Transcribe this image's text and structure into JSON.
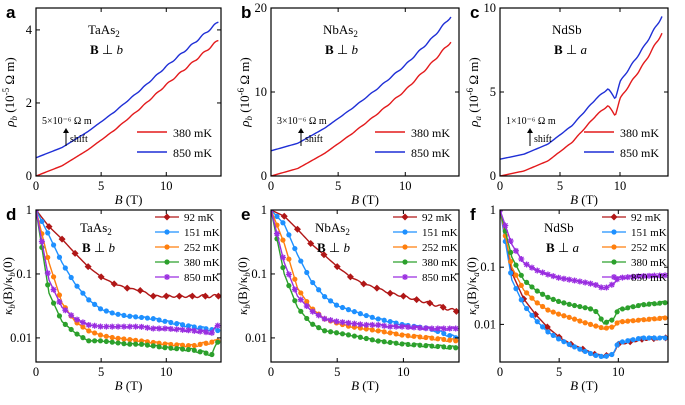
{
  "colors": {
    "red": "#e31a1c",
    "blue": "#1f2fd6",
    "k92": "#b01717",
    "k151": "#1e90ff",
    "k252": "#ff7f0e",
    "k380": "#2ca02c",
    "k850": "#9a2ee0"
  },
  "chart_data": [
    {
      "panel": "a",
      "type": "line",
      "material": "TaAs",
      "material_sub": "2",
      "field_dir": "B ⊥ b",
      "xlabel": "B (T)",
      "ylabel_sym": "ρ",
      "ylabel_sub": "b",
      "ylabel_unit": " (10",
      "ylabel_exp": "-5",
      "ylabel_unit2": " Ω m)",
      "xlim": [
        0,
        14.2
      ],
      "ylim": [
        0,
        4.6
      ],
      "xticks": [
        0,
        5,
        10
      ],
      "xtick_labels": [
        "0",
        "5",
        "10"
      ],
      "yticks": [
        0,
        2,
        4
      ],
      "ytick_labels": [
        "0",
        "2",
        "4"
      ],
      "shift_label": "5×10⁻⁶ Ω m",
      "shift_word": "shift",
      "shift_value": 0.5,
      "series": [
        {
          "name": "380 mK",
          "color": "red",
          "x": [
            0,
            2,
            4,
            6,
            8,
            10,
            12,
            14
          ],
          "y": [
            0,
            0.28,
            0.72,
            1.25,
            1.85,
            2.5,
            3.1,
            3.72
          ]
        },
        {
          "name": "850 mK",
          "color": "blue",
          "x": [
            0,
            2,
            4,
            6,
            8,
            10,
            12,
            14
          ],
          "y": [
            0.5,
            0.78,
            1.22,
            1.75,
            2.35,
            3.0,
            3.6,
            4.22
          ]
        }
      ]
    },
    {
      "panel": "b",
      "type": "line",
      "material": "NbAs",
      "material_sub": "2",
      "field_dir": "B ⊥ b",
      "xlabel": "B (T)",
      "ylabel_sym": "ρ",
      "ylabel_sub": "b",
      "ylabel_unit": " (10",
      "ylabel_exp": "-6",
      "ylabel_unit2": " Ω m)",
      "xlim": [
        0,
        14
      ],
      "ylim": [
        0,
        20
      ],
      "xticks": [
        0,
        5,
        10
      ],
      "xtick_labels": [
        "0",
        "5",
        "10"
      ],
      "yticks": [
        0,
        10,
        20
      ],
      "ytick_labels": [
        "0",
        "10",
        "20"
      ],
      "shift_label": "3×10⁻⁶ Ω m",
      "shift_word": "shift",
      "shift_value": 3,
      "series": [
        {
          "name": "380 mK",
          "color": "red",
          "x": [
            0,
            2,
            4,
            6,
            8,
            10,
            12,
            13.4
          ],
          "y": [
            0,
            0.9,
            2.7,
            5.0,
            7.5,
            10.2,
            13.5,
            16.0
          ]
        },
        {
          "name": "850 mK",
          "color": "blue",
          "x": [
            0,
            2,
            4,
            6,
            8,
            10,
            12,
            13.4
          ],
          "y": [
            3.0,
            3.9,
            5.7,
            8.0,
            10.5,
            13.2,
            16.4,
            19.0
          ]
        }
      ]
    },
    {
      "panel": "c",
      "type": "line",
      "material": "NdSb",
      "material_sub": "",
      "field_dir": "B ⊥ a",
      "xlabel": "B (T)",
      "ylabel_sym": "ρ",
      "ylabel_sub": "a",
      "ylabel_unit": " (10",
      "ylabel_exp": "-6",
      "ylabel_unit2": " Ω m)",
      "xlim": [
        0,
        14
      ],
      "ylim": [
        0,
        10
      ],
      "xticks": [
        0,
        5,
        10
      ],
      "xtick_labels": [
        "0",
        "5",
        "10"
      ],
      "yticks": [
        0,
        5,
        10
      ],
      "ytick_labels": [
        "0",
        "5",
        "10"
      ],
      "shift_label": "1×10⁻⁶ Ω m",
      "shift_word": "shift",
      "shift_value": 1,
      "series": [
        {
          "name": "380 mK",
          "color": "red",
          "x": [
            0,
            2,
            4,
            6,
            8,
            9,
            9.6,
            10,
            12,
            13.5
          ],
          "y": [
            0,
            0.3,
            0.9,
            2.0,
            3.6,
            4.2,
            3.6,
            4.6,
            6.7,
            8.5
          ]
        },
        {
          "name": "850 mK",
          "color": "blue",
          "x": [
            0,
            2,
            4,
            6,
            8,
            9,
            9.6,
            10,
            12,
            13.5
          ],
          "y": [
            1.0,
            1.3,
            1.9,
            3.0,
            4.6,
            5.2,
            4.6,
            5.6,
            7.7,
            9.5
          ]
        }
      ]
    },
    {
      "panel": "d",
      "type": "line",
      "material": "TaAs",
      "material_sub": "2",
      "field_dir": "B ⊥ b",
      "xlabel": "B (T)",
      "ylabel_sym": "κ",
      "ylabel_sub": "b",
      "ylabel_rest": "(B)/κ",
      "ylabel_sub2": "b",
      "ylabel_end": "(0)",
      "yscale": "log",
      "xlim": [
        0,
        14.2
      ],
      "ylim": [
        0.0042,
        1.0
      ],
      "xticks": [
        0,
        5,
        10
      ],
      "xtick_labels": [
        "0",
        "5",
        "10"
      ],
      "yticks": [
        1,
        0.1,
        0.01
      ],
      "ytick_labels": [
        "1",
        "0.1",
        "0.01"
      ],
      "series": [
        {
          "name": "92  mK",
          "color": "k92",
          "x": [
            0,
            1,
            2,
            3,
            4,
            5,
            6,
            7,
            8,
            9,
            10,
            12,
            14
          ],
          "y": [
            1,
            0.55,
            0.35,
            0.21,
            0.13,
            0.09,
            0.07,
            0.06,
            0.055,
            0.045,
            0.045,
            0.045,
            0.045
          ]
        },
        {
          "name": "151  mK",
          "color": "k151",
          "x": [
            0,
            1,
            2,
            3,
            4,
            5,
            6,
            7,
            8,
            9,
            10,
            12,
            14
          ],
          "y": [
            1,
            0.4,
            0.15,
            0.07,
            0.04,
            0.028,
            0.024,
            0.022,
            0.021,
            0.02,
            0.018,
            0.015,
            0.013
          ]
        },
        {
          "name": "252  mK",
          "color": "k252",
          "x": [
            0,
            1,
            2,
            3,
            4,
            5,
            6,
            7,
            8,
            9,
            10,
            12,
            14
          ],
          "y": [
            1,
            0.15,
            0.035,
            0.018,
            0.013,
            0.011,
            0.01,
            0.0095,
            0.009,
            0.0085,
            0.008,
            0.0075,
            0.009
          ]
        },
        {
          "name": "380 mK",
          "color": "k380",
          "x": [
            0,
            1,
            2,
            3,
            4,
            5,
            6,
            7,
            8,
            9,
            10,
            12,
            13.5,
            14
          ],
          "y": [
            1,
            0.05,
            0.018,
            0.012,
            0.009,
            0.009,
            0.0085,
            0.008,
            0.008,
            0.0075,
            0.007,
            0.0065,
            0.0055,
            0.009
          ]
        },
        {
          "name": "850 mK",
          "color": "k850",
          "x": [
            0,
            1,
            2,
            3,
            4,
            5,
            6,
            7,
            8,
            9,
            10,
            12,
            13.5,
            14
          ],
          "y": [
            1,
            0.08,
            0.03,
            0.02,
            0.016,
            0.015,
            0.015,
            0.015,
            0.015,
            0.014,
            0.014,
            0.013,
            0.012,
            0.016
          ]
        }
      ]
    },
    {
      "panel": "e",
      "type": "line",
      "material": "NbAs",
      "material_sub": "2",
      "field_dir": "B ⊥ b",
      "xlabel": "B (T)",
      "ylabel_sym": "κ",
      "ylabel_sub": "b",
      "ylabel_rest": "(B)/κ",
      "ylabel_sub2": "b",
      "ylabel_end": "(0)",
      "yscale": "log",
      "xlim": [
        0,
        14.2
      ],
      "ylim": [
        0.0042,
        1.0
      ],
      "xticks": [
        0,
        5,
        10
      ],
      "xtick_labels": [
        "0",
        "5",
        "10"
      ],
      "yticks": [
        1,
        0.1,
        0.01
      ],
      "ytick_labels": [
        "1",
        "0.1",
        "0.01"
      ],
      "series": [
        {
          "name": "92  mK",
          "color": "k92",
          "x": [
            0,
            1,
            2,
            3,
            4,
            5,
            6,
            7,
            8,
            9,
            10,
            12,
            14
          ],
          "y": [
            1,
            0.8,
            0.5,
            0.3,
            0.2,
            0.13,
            0.09,
            0.07,
            0.06,
            0.05,
            0.045,
            0.035,
            0.026
          ]
        },
        {
          "name": "151  mK",
          "color": "k151",
          "x": [
            0,
            1,
            2,
            3,
            4,
            5,
            6,
            7,
            8,
            9,
            10,
            12,
            14
          ],
          "y": [
            1,
            0.6,
            0.2,
            0.08,
            0.045,
            0.032,
            0.027,
            0.023,
            0.02,
            0.018,
            0.016,
            0.014,
            0.01
          ]
        },
        {
          "name": "252  mK",
          "color": "k252",
          "x": [
            0,
            1,
            2,
            3,
            4,
            5,
            6,
            7,
            8,
            9,
            10,
            12,
            14
          ],
          "y": [
            1,
            0.3,
            0.06,
            0.03,
            0.02,
            0.017,
            0.015,
            0.014,
            0.013,
            0.012,
            0.011,
            0.01,
            0.009
          ]
        },
        {
          "name": "380 mK",
          "color": "k380",
          "x": [
            0,
            1,
            2,
            3,
            4,
            5,
            6,
            7,
            8,
            9,
            10,
            12,
            14
          ],
          "y": [
            1,
            0.1,
            0.03,
            0.017,
            0.013,
            0.012,
            0.011,
            0.01,
            0.009,
            0.0085,
            0.008,
            0.0075,
            0.007
          ]
        },
        {
          "name": "850 mK",
          "color": "k850",
          "x": [
            0,
            1,
            2,
            3,
            4,
            5,
            6,
            7,
            8,
            9,
            10,
            12,
            14
          ],
          "y": [
            1,
            0.15,
            0.045,
            0.027,
            0.02,
            0.018,
            0.017,
            0.016,
            0.016,
            0.015,
            0.015,
            0.014,
            0.014
          ]
        }
      ]
    },
    {
      "panel": "f",
      "type": "line",
      "material": "NdSb",
      "material_sub": "",
      "field_dir": "B ⊥ a",
      "xlabel": "B (T)",
      "ylabel_sym": "κ",
      "ylabel_sub": "a",
      "ylabel_rest": "(B)/κ",
      "ylabel_sub2": "a",
      "ylabel_end": "(0)",
      "yscale": "log",
      "xlim": [
        0,
        14.2
      ],
      "ylim": [
        0.0022,
        1.0
      ],
      "xticks": [
        0,
        5,
        10
      ],
      "xtick_labels": [
        "0",
        "5",
        "10"
      ],
      "yticks": [
        1,
        0.1,
        0.01
      ],
      "ytick_labels": [
        "1",
        "0.1",
        "0.01"
      ],
      "series": [
        {
          "name": "92  mK",
          "color": "k92",
          "x": [
            0,
            1,
            2,
            3,
            4,
            5,
            6,
            7,
            8,
            8.8,
            9.5,
            10,
            12,
            14
          ],
          "y": [
            1,
            0.08,
            0.028,
            0.015,
            0.009,
            0.006,
            0.0045,
            0.0037,
            0.003,
            0.0028,
            0.003,
            0.0045,
            0.0055,
            0.0058
          ]
        },
        {
          "name": "151  mK",
          "color": "k151",
          "x": [
            0,
            1,
            2,
            3,
            4,
            5,
            6,
            7,
            8,
            8.8,
            9.5,
            10,
            12,
            14
          ],
          "y": [
            1,
            0.06,
            0.022,
            0.012,
            0.0075,
            0.0055,
            0.0043,
            0.0035,
            0.0029,
            0.0027,
            0.003,
            0.0048,
            0.0058,
            0.0058
          ]
        },
        {
          "name": "252  mK",
          "color": "k252",
          "x": [
            0,
            1,
            2,
            3,
            4,
            5,
            6,
            7,
            8,
            8.8,
            9.5,
            10,
            12,
            14
          ],
          "y": [
            1,
            0.1,
            0.04,
            0.025,
            0.018,
            0.015,
            0.013,
            0.011,
            0.0095,
            0.0085,
            0.009,
            0.011,
            0.012,
            0.013
          ]
        },
        {
          "name": "380 mK",
          "color": "k380",
          "x": [
            0,
            1,
            2,
            3,
            4,
            5,
            6,
            7,
            8,
            8.8,
            9.5,
            10,
            12,
            14
          ],
          "y": [
            1,
            0.15,
            0.06,
            0.04,
            0.03,
            0.025,
            0.022,
            0.02,
            0.018,
            0.0105,
            0.012,
            0.018,
            0.022,
            0.024
          ]
        },
        {
          "name": "850 mK",
          "color": "k850",
          "x": [
            0,
            1,
            2,
            3,
            4,
            5,
            6,
            7,
            8,
            8.8,
            9.5,
            10,
            12,
            14
          ],
          "y": [
            1,
            0.25,
            0.12,
            0.09,
            0.075,
            0.065,
            0.06,
            0.055,
            0.05,
            0.042,
            0.05,
            0.065,
            0.07,
            0.072
          ]
        }
      ]
    }
  ]
}
